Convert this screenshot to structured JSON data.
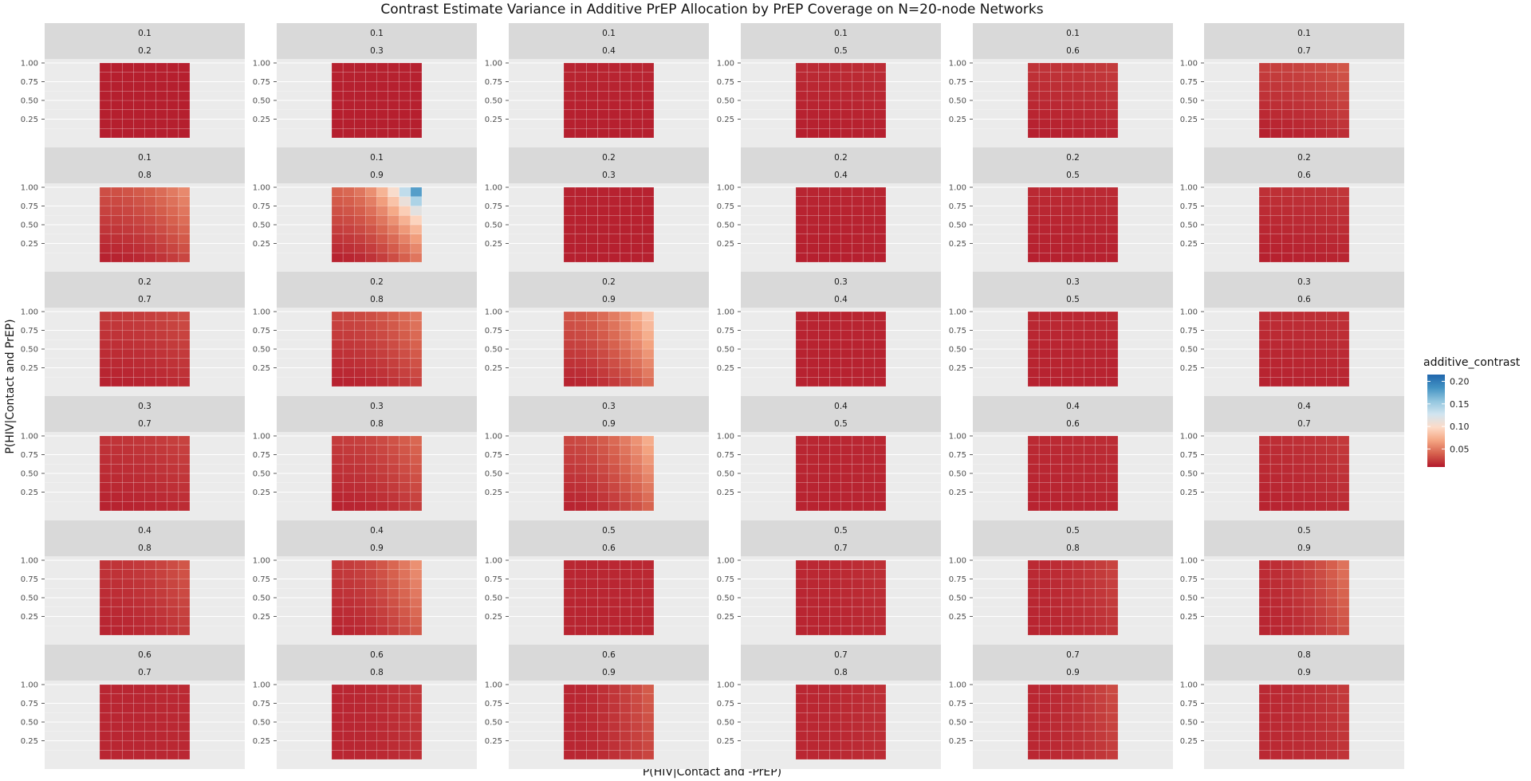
{
  "chart_data": {
    "type": "heatmap",
    "title": "Contrast Estimate Variance in Additive PrEP Allocation by PrEP Coverage on N=20-node Networks",
    "xlabel": "P(HIV|Contact and -PrEP)",
    "ylabel": "P(HIV|Contact and PrEP)",
    "y_ticks": [
      "0.25",
      "0.50",
      "0.75",
      "1.00"
    ],
    "fill_name": "additive_contrast",
    "legend": {
      "title": "additive_contrast",
      "ticks": [
        "0.05",
        "0.10",
        "0.15",
        "0.20"
      ],
      "range": [
        0.01,
        0.215
      ],
      "colors": [
        "#b2182b",
        "#d6604d",
        "#f4a582",
        "#fddbc7",
        "#d1e5f0",
        "#92c5de",
        "#4393c3",
        "#2166ac"
      ]
    },
    "panels": [
      {
        "row": 1,
        "col": 1,
        "top": "0.1",
        "bottom": "0.2",
        "cov_a": 0.1,
        "cov_b": 0.2
      },
      {
        "row": 1,
        "col": 2,
        "top": "0.1",
        "bottom": "0.3",
        "cov_a": 0.1,
        "cov_b": 0.3
      },
      {
        "row": 1,
        "col": 3,
        "top": "0.1",
        "bottom": "0.4",
        "cov_a": 0.1,
        "cov_b": 0.4
      },
      {
        "row": 1,
        "col": 4,
        "top": "0.1",
        "bottom": "0.5",
        "cov_a": 0.1,
        "cov_b": 0.5
      },
      {
        "row": 1,
        "col": 5,
        "top": "0.1",
        "bottom": "0.6",
        "cov_a": 0.1,
        "cov_b": 0.6
      },
      {
        "row": 1,
        "col": 6,
        "top": "0.1",
        "bottom": "0.7",
        "cov_a": 0.1,
        "cov_b": 0.7
      },
      {
        "row": 2,
        "col": 1,
        "top": "0.1",
        "bottom": "0.8",
        "cov_a": 0.1,
        "cov_b": 0.8
      },
      {
        "row": 2,
        "col": 2,
        "top": "0.1",
        "bottom": "0.9",
        "cov_a": 0.1,
        "cov_b": 0.9
      },
      {
        "row": 2,
        "col": 3,
        "top": "0.2",
        "bottom": "0.3",
        "cov_a": 0.2,
        "cov_b": 0.3
      },
      {
        "row": 2,
        "col": 4,
        "top": "0.2",
        "bottom": "0.4",
        "cov_a": 0.2,
        "cov_b": 0.4
      },
      {
        "row": 2,
        "col": 5,
        "top": "0.2",
        "bottom": "0.5",
        "cov_a": 0.2,
        "cov_b": 0.5
      },
      {
        "row": 2,
        "col": 6,
        "top": "0.2",
        "bottom": "0.6",
        "cov_a": 0.2,
        "cov_b": 0.6
      },
      {
        "row": 3,
        "col": 1,
        "top": "0.2",
        "bottom": "0.7",
        "cov_a": 0.2,
        "cov_b": 0.7
      },
      {
        "row": 3,
        "col": 2,
        "top": "0.2",
        "bottom": "0.8",
        "cov_a": 0.2,
        "cov_b": 0.8
      },
      {
        "row": 3,
        "col": 3,
        "top": "0.2",
        "bottom": "0.9",
        "cov_a": 0.2,
        "cov_b": 0.9
      },
      {
        "row": 3,
        "col": 4,
        "top": "0.3",
        "bottom": "0.4",
        "cov_a": 0.3,
        "cov_b": 0.4
      },
      {
        "row": 3,
        "col": 5,
        "top": "0.3",
        "bottom": "0.5",
        "cov_a": 0.3,
        "cov_b": 0.5
      },
      {
        "row": 3,
        "col": 6,
        "top": "0.3",
        "bottom": "0.6",
        "cov_a": 0.3,
        "cov_b": 0.6
      },
      {
        "row": 4,
        "col": 1,
        "top": "0.3",
        "bottom": "0.7",
        "cov_a": 0.3,
        "cov_b": 0.7
      },
      {
        "row": 4,
        "col": 2,
        "top": "0.3",
        "bottom": "0.8",
        "cov_a": 0.3,
        "cov_b": 0.8
      },
      {
        "row": 4,
        "col": 3,
        "top": "0.3",
        "bottom": "0.9",
        "cov_a": 0.3,
        "cov_b": 0.9
      },
      {
        "row": 4,
        "col": 4,
        "top": "0.4",
        "bottom": "0.5",
        "cov_a": 0.4,
        "cov_b": 0.5
      },
      {
        "row": 4,
        "col": 5,
        "top": "0.4",
        "bottom": "0.6",
        "cov_a": 0.4,
        "cov_b": 0.6
      },
      {
        "row": 4,
        "col": 6,
        "top": "0.4",
        "bottom": "0.7",
        "cov_a": 0.4,
        "cov_b": 0.7
      },
      {
        "row": 5,
        "col": 1,
        "top": "0.4",
        "bottom": "0.8",
        "cov_a": 0.4,
        "cov_b": 0.8
      },
      {
        "row": 5,
        "col": 2,
        "top": "0.4",
        "bottom": "0.9",
        "cov_a": 0.4,
        "cov_b": 0.9
      },
      {
        "row": 5,
        "col": 3,
        "top": "0.5",
        "bottom": "0.6",
        "cov_a": 0.5,
        "cov_b": 0.6
      },
      {
        "row": 5,
        "col": 4,
        "top": "0.5",
        "bottom": "0.7",
        "cov_a": 0.5,
        "cov_b": 0.7
      },
      {
        "row": 5,
        "col": 5,
        "top": "0.5",
        "bottom": "0.8",
        "cov_a": 0.5,
        "cov_b": 0.8
      },
      {
        "row": 5,
        "col": 6,
        "top": "0.5",
        "bottom": "0.9",
        "cov_a": 0.5,
        "cov_b": 0.9
      },
      {
        "row": 6,
        "col": 1,
        "top": "0.6",
        "bottom": "0.7",
        "cov_a": 0.6,
        "cov_b": 0.7
      },
      {
        "row": 6,
        "col": 2,
        "top": "0.6",
        "bottom": "0.8",
        "cov_a": 0.6,
        "cov_b": 0.8
      },
      {
        "row": 6,
        "col": 3,
        "top": "0.6",
        "bottom": "0.9",
        "cov_a": 0.6,
        "cov_b": 0.9
      },
      {
        "row": 6,
        "col": 4,
        "top": "0.7",
        "bottom": "0.8",
        "cov_a": 0.7,
        "cov_b": 0.8
      },
      {
        "row": 6,
        "col": 5,
        "top": "0.7",
        "bottom": "0.9",
        "cov_a": 0.7,
        "cov_b": 0.9
      },
      {
        "row": 6,
        "col": 6,
        "top": "0.8",
        "bottom": "0.9",
        "cov_a": 0.8,
        "cov_b": 0.9
      }
    ],
    "grid_resolution": [
      8,
      8
    ],
    "x_range": [
      0.05,
      1.0
    ],
    "y_range": [
      0.05,
      1.0
    ]
  }
}
